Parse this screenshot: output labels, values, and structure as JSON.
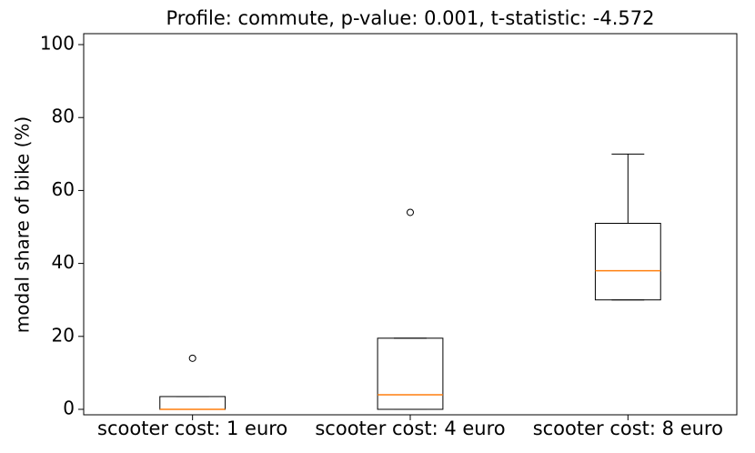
{
  "chart_data": {
    "type": "box",
    "title": "Profile: commute, p-value: 0.001, t-statistic: -4.572",
    "y_label": "modal share of bike (%)",
    "categories": [
      "scooter cost: 1 euro",
      "scooter cost: 4 euro",
      "scooter cost: 8 euro"
    ],
    "boxes": [
      {
        "min": 0,
        "q1": 0,
        "median": 0,
        "q3": 3.5,
        "max": 3.5,
        "outliers": [
          14
        ]
      },
      {
        "min": 0,
        "q1": 0,
        "median": 4,
        "q3": 19.5,
        "max": 19.5,
        "outliers": [
          54
        ]
      },
      {
        "min": 30,
        "q1": 30,
        "median": 38,
        "q3": 51,
        "max": 70,
        "outliers": []
      }
    ],
    "color": "#000000",
    "median_color": "#ff7f0e",
    "ylim": [
      -1.5,
      103
    ],
    "yticks": [
      0,
      20,
      40,
      60,
      80,
      100
    ]
  }
}
